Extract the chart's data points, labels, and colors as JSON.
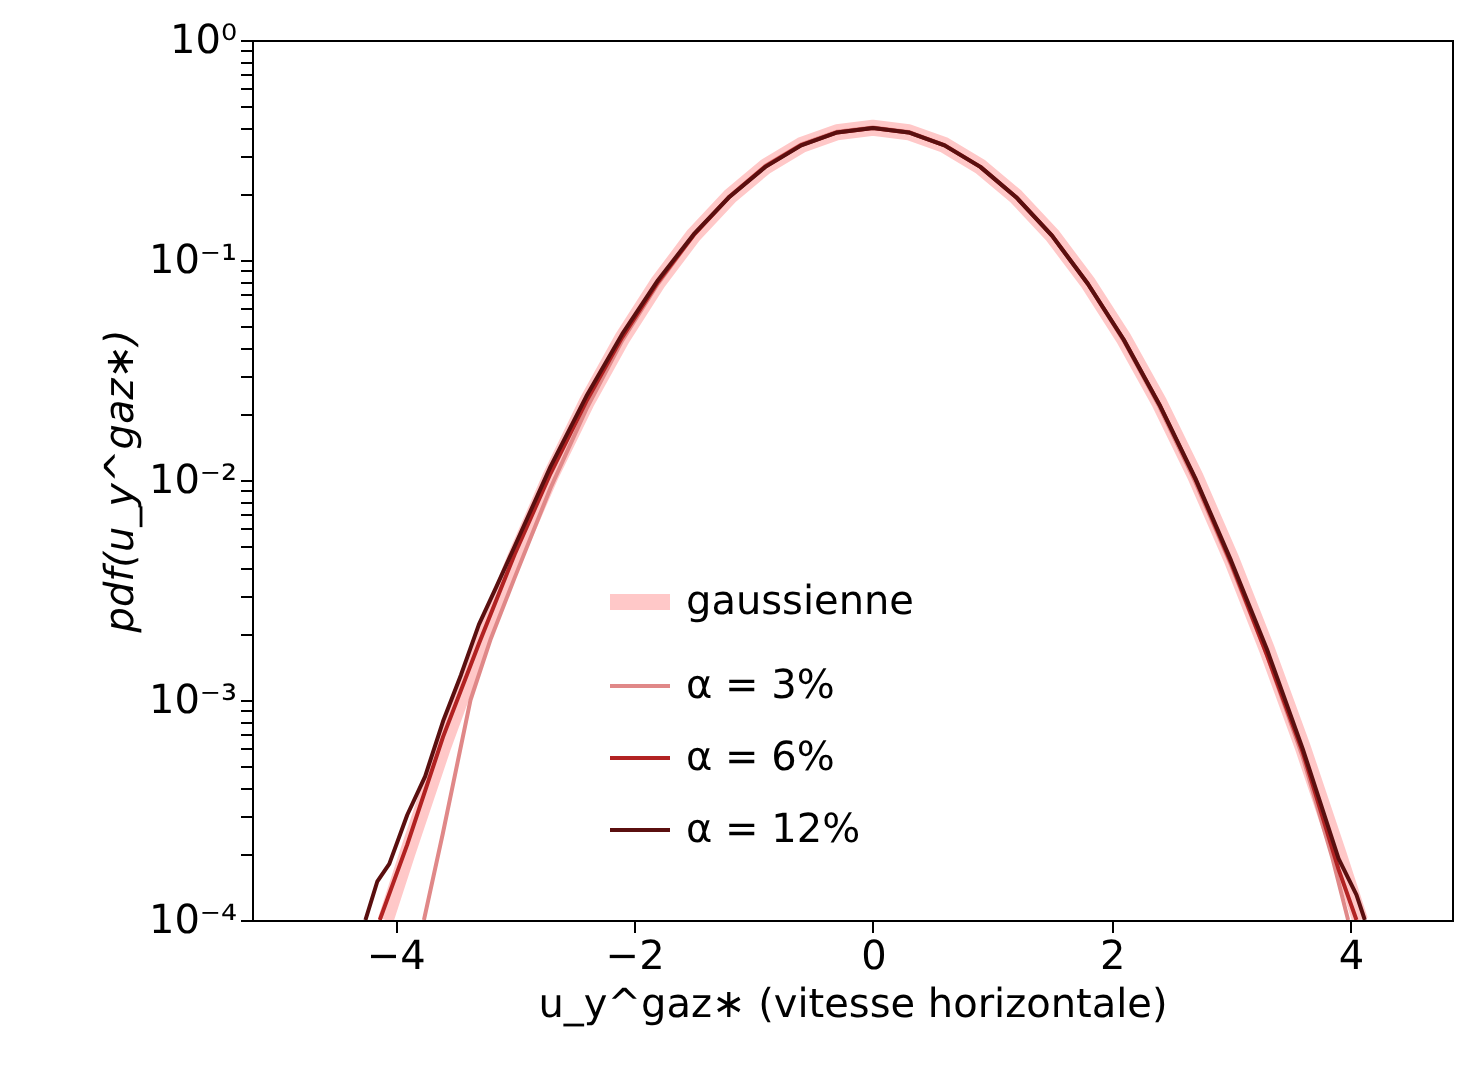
{
  "chart_data": {
    "type": "line",
    "xlabel": "u_y^gaz∗ (vitesse horizontale)",
    "ylabel": "pdf(u_y^gaz∗)",
    "log": "y",
    "legend": "bottom",
    "grid": false,
    "marker": "none",
    "line_style": "solid",
    "xlim": [
      -5.2,
      4.85
    ],
    "ylim": [
      0.0001,
      1
    ],
    "xticks": [
      {
        "value": -4,
        "label": "−4"
      },
      {
        "value": -2,
        "label": "−2"
      },
      0,
      2,
      4
    ],
    "yticks": [
      {
        "value": 0.0001,
        "label": "10⁻⁴"
      },
      {
        "value": 0.0002,
        "label": null
      },
      {
        "value": 0.0003,
        "label": null
      },
      {
        "value": 0.0004,
        "label": null
      },
      {
        "value": 0.0005,
        "label": null
      },
      {
        "value": 0.0006,
        "label": null
      },
      {
        "value": 0.0007,
        "label": null
      },
      {
        "value": 0.0008,
        "label": null
      },
      {
        "value": 0.0009,
        "label": null
      },
      {
        "value": 0.001,
        "label": "10⁻³"
      },
      {
        "value": 0.002,
        "label": null
      },
      {
        "value": 0.003,
        "label": null
      },
      {
        "value": 0.004,
        "label": null
      },
      {
        "value": 0.005,
        "label": null
      },
      {
        "value": 0.006,
        "label": null
      },
      {
        "value": 0.007,
        "label": null
      },
      {
        "value": 0.008,
        "label": null
      },
      {
        "value": 0.009,
        "label": null
      },
      {
        "value": 0.01,
        "label": "10⁻²"
      },
      {
        "value": 0.02,
        "label": null
      },
      {
        "value": 0.03,
        "label": null
      },
      {
        "value": 0.04,
        "label": null
      },
      {
        "value": 0.05,
        "label": null
      },
      {
        "value": 0.06,
        "label": null
      },
      {
        "value": 0.07,
        "label": null
      },
      {
        "value": 0.08,
        "label": null
      },
      {
        "value": 0.09,
        "label": null
      },
      {
        "value": 0.1,
        "label": "10⁻¹"
      },
      {
        "value": 0.2,
        "label": null
      },
      {
        "value": 0.3,
        "label": null
      },
      {
        "value": 0.4,
        "label": null
      },
      {
        "value": 0.5,
        "label": null
      },
      {
        "value": 0.6,
        "label": null
      },
      {
        "value": 0.7,
        "label": null
      },
      {
        "value": 0.8,
        "label": null
      },
      {
        "value": 0.9,
        "label": null
      },
      {
        "value": 1,
        "label": "10⁰"
      }
    ],
    "series": [
      {
        "name": "gaussienne",
        "color": "#ffc8c8",
        "x": [
          -4.08,
          -3.9,
          -3.6,
          -3.3,
          -3.0,
          -2.7,
          -2.4,
          -2.1,
          -1.8,
          -1.5,
          -1.2,
          -0.9,
          -0.6,
          -0.3,
          0,
          0.3,
          0.6,
          0.9,
          1.2,
          1.5,
          1.8,
          2.1,
          2.4,
          2.7,
          3.0,
          3.3,
          3.6,
          3.9,
          4.08
        ],
        "values": [
          0.0001,
          0.0002,
          0.00061,
          0.0017,
          0.0044,
          0.0104,
          0.0224,
          0.044,
          0.079,
          0.13,
          0.194,
          0.266,
          0.333,
          0.381,
          0.399,
          0.381,
          0.333,
          0.266,
          0.194,
          0.13,
          0.079,
          0.044,
          0.0224,
          0.0104,
          0.0044,
          0.0017,
          0.00061,
          0.0002,
          0.0001
        ]
      },
      {
        "name": "α = 3%",
        "color": "#e08888",
        "x": [
          -3.76,
          -3.6,
          -3.37,
          -3.2,
          -3.0,
          -2.7,
          -2.4,
          -2.1,
          -1.8,
          -1.5,
          -1.2,
          -0.9,
          -0.6,
          -0.3,
          0,
          0.3,
          0.6,
          0.9,
          1.2,
          1.5,
          1.8,
          2.1,
          2.4,
          2.7,
          3.0,
          3.3,
          3.6,
          3.85,
          3.98
        ],
        "values": [
          0.0001,
          0.00025,
          0.001,
          0.0019,
          0.0036,
          0.0092,
          0.021,
          0.043,
          0.078,
          0.13,
          0.195,
          0.268,
          0.335,
          0.383,
          0.4,
          0.382,
          0.333,
          0.265,
          0.193,
          0.129,
          0.078,
          0.043,
          0.0215,
          0.0098,
          0.0041,
          0.0016,
          0.00055,
          0.00019,
          0.0001
        ]
      },
      {
        "name": "α = 6%",
        "color": "#b22222",
        "x": [
          -4.13,
          -3.9,
          -3.6,
          -3.3,
          -3.0,
          -2.7,
          -2.4,
          -2.1,
          -1.8,
          -1.5,
          -1.2,
          -0.9,
          -0.6,
          -0.3,
          0,
          0.3,
          0.6,
          0.9,
          1.2,
          1.5,
          1.8,
          2.1,
          2.4,
          2.7,
          3.0,
          3.3,
          3.6,
          3.9,
          4.05
        ],
        "values": [
          0.0001,
          0.00022,
          0.00068,
          0.0018,
          0.0046,
          0.0107,
          0.0228,
          0.0445,
          0.0795,
          0.13,
          0.194,
          0.266,
          0.333,
          0.38,
          0.398,
          0.38,
          0.332,
          0.265,
          0.193,
          0.129,
          0.078,
          0.0435,
          0.022,
          0.0101,
          0.0042,
          0.0016,
          0.00058,
          0.00017,
          0.0001
        ]
      },
      {
        "name": "α = 12%",
        "color": "#5a0f0f",
        "x": [
          -4.25,
          -4.15,
          -4.05,
          -3.9,
          -3.75,
          -3.6,
          -3.45,
          -3.3,
          -3.15,
          -3.0,
          -2.7,
          -2.4,
          -2.1,
          -1.8,
          -1.5,
          -1.2,
          -0.9,
          -0.6,
          -0.3,
          0,
          0.3,
          0.6,
          0.9,
          1.2,
          1.5,
          1.8,
          2.1,
          2.4,
          2.7,
          3.0,
          3.3,
          3.6,
          3.9,
          4.05,
          4.12
        ],
        "values": [
          0.0001,
          0.00015,
          0.00018,
          0.0003,
          0.00045,
          0.0008,
          0.0013,
          0.0022,
          0.0033,
          0.005,
          0.0115,
          0.024,
          0.046,
          0.081,
          0.131,
          0.194,
          0.265,
          0.332,
          0.38,
          0.398,
          0.38,
          0.332,
          0.265,
          0.193,
          0.129,
          0.078,
          0.0435,
          0.022,
          0.0102,
          0.0043,
          0.0017,
          0.0006,
          0.00019,
          0.00013,
          0.0001
        ]
      }
    ]
  }
}
